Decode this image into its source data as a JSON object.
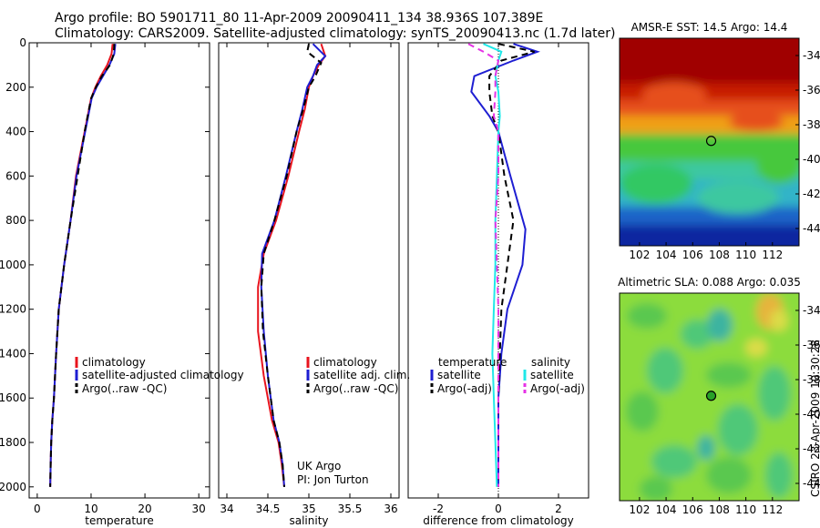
{
  "header": {
    "line1": "Argo profile: BO 5901711_80 11-Apr-2009 20090411_134 38.936S 107.389E",
    "line2": "Climatology: CARS2009. Satellite-adjusted climatology: synTS_20090413.nc (1.7d later)"
  },
  "credit": {
    "line1": "UK Argo",
    "line2": "PI: Jon Turton",
    "side": "CSIRO 23-Apr-2009 10:30:28"
  },
  "colors": {
    "climatology": "#e8141e",
    "satellite": "#1e1ed2",
    "argo": "#000000",
    "sal_satellite": "#20e8e8",
    "sal_argo": "#e632e6"
  },
  "chart_data": [
    {
      "type": "line",
      "xlabel": "temperature",
      "ylabel": "",
      "xlim": [
        -1.5,
        32
      ],
      "ylim": [
        0,
        2050
      ],
      "y_reversed": true,
      "xticks": [
        0,
        10,
        20,
        30
      ],
      "yticks": [
        0,
        200,
        400,
        600,
        800,
        1000,
        1200,
        1400,
        1600,
        1800,
        2000
      ],
      "legend": [
        "climatology",
        "satellite-adjusted climatology",
        "Argo(..raw -QC)"
      ],
      "series": [
        {
          "name": "climatology",
          "style": "solid",
          "color": "#e8141e",
          "x": [
            14.0,
            13.8,
            13.0,
            11.8,
            10.8,
            10.0,
            8.8,
            7.2,
            6.2,
            5.0,
            4.0,
            3.5,
            3.1,
            2.8,
            2.6,
            2.5,
            2.4
          ],
          "y": [
            5,
            50,
            100,
            150,
            200,
            250,
            400,
            600,
            800,
            1000,
            1200,
            1400,
            1600,
            1700,
            1800,
            1900,
            2000
          ]
        },
        {
          "name": "satellite-adjusted climatology",
          "style": "solid",
          "color": "#1e1ed2",
          "x": [
            14.5,
            14.3,
            13.4,
            12.2,
            11.0,
            10.1,
            8.9,
            7.3,
            6.2,
            5.0,
            4.0,
            3.5,
            3.1,
            2.8,
            2.6,
            2.5,
            2.4
          ],
          "y": [
            5,
            50,
            100,
            150,
            200,
            250,
            400,
            600,
            800,
            1000,
            1200,
            1400,
            1600,
            1700,
            1800,
            1900,
            2000
          ]
        },
        {
          "name": "Argo(..raw -QC)",
          "style": "dashed",
          "color": "#000000",
          "x": [
            14.3,
            14.2,
            13.5,
            12.0,
            10.9,
            10.0,
            8.8,
            7.5,
            6.2,
            5.0,
            4.0,
            3.5,
            3.1,
            2.8,
            2.6,
            2.5,
            2.4
          ],
          "y": [
            5,
            50,
            100,
            150,
            200,
            250,
            400,
            600,
            800,
            1000,
            1200,
            1400,
            1600,
            1700,
            1800,
            1900,
            2000
          ]
        }
      ]
    },
    {
      "type": "line",
      "xlabel": "salinity",
      "ylabel": "",
      "xlim": [
        33.9,
        36.1
      ],
      "ylim": [
        0,
        2050
      ],
      "y_reversed": true,
      "xticks": [
        34,
        34.5,
        35,
        35.5,
        36
      ],
      "xtick_labels": [
        "34",
        "34.5",
        "35",
        "35.5",
        "36"
      ],
      "legend": [
        "climatology",
        "satellite adj. clim.",
        "Argo(..raw -QC)"
      ],
      "series": [
        {
          "name": "climatology",
          "style": "solid",
          "color": "#e8141e",
          "x": [
            35.15,
            35.2,
            35.12,
            35.05,
            35.0,
            34.95,
            34.88,
            34.75,
            34.6,
            34.45,
            34.38,
            34.38,
            34.45,
            34.55,
            34.63,
            34.67,
            34.7
          ],
          "y": [
            5,
            60,
            100,
            150,
            200,
            300,
            400,
            600,
            800,
            950,
            1100,
            1300,
            1500,
            1700,
            1800,
            1900,
            2000
          ]
        },
        {
          "name": "satellite adj. clim.",
          "style": "solid",
          "color": "#1e1ed2",
          "x": [
            35.05,
            35.2,
            35.1,
            35.05,
            34.98,
            34.92,
            34.85,
            34.72,
            34.58,
            34.43,
            34.42,
            34.45,
            34.5,
            34.57,
            34.64,
            34.68,
            34.7
          ],
          "y": [
            5,
            60,
            100,
            150,
            200,
            300,
            400,
            600,
            800,
            950,
            1100,
            1300,
            1500,
            1700,
            1800,
            1900,
            2000
          ]
        },
        {
          "name": "Argo(..raw -QC)",
          "style": "dashed",
          "color": "#000000",
          "x": [
            35.0,
            34.98,
            35.15,
            35.08,
            35.0,
            34.93,
            34.85,
            34.73,
            34.58,
            34.45,
            34.42,
            34.44,
            34.5,
            34.57,
            34.64,
            34.68,
            34.7
          ],
          "y": [
            5,
            40,
            90,
            150,
            200,
            300,
            400,
            600,
            800,
            950,
            1100,
            1300,
            1500,
            1700,
            1800,
            1900,
            2000
          ]
        }
      ]
    },
    {
      "type": "line",
      "xlabel": "difference from climatology",
      "ylabel": "",
      "xlim": [
        -3,
        3
      ],
      "ylim": [
        0,
        2050
      ],
      "y_reversed": true,
      "xticks": [
        -2,
        0,
        2
      ],
      "legend_titles": [
        "temperature",
        "salinity"
      ],
      "legend": [
        "satellite",
        "Argo(-adj)",
        "satellite",
        "Argo(-adj)"
      ],
      "series": [
        {
          "name": "satellite",
          "group": "temperature",
          "style": "solid",
          "color": "#1e1ed2",
          "x": [
            0.5,
            1.3,
            0.5,
            -0.8,
            -0.9,
            -0.3,
            0.0,
            0.4,
            0.9,
            0.8,
            0.3,
            0.1,
            0.0,
            0.0,
            0.0
          ],
          "y": [
            5,
            40,
            80,
            150,
            220,
            330,
            400,
            600,
            840,
            1000,
            1200,
            1400,
            1600,
            1800,
            2000
          ]
        },
        {
          "name": "Argo(-adj)",
          "group": "temperature",
          "style": "dashed",
          "color": "#000000",
          "x": [
            0.0,
            1.2,
            0.1,
            -0.3,
            -0.3,
            -0.2,
            0.0,
            0.2,
            0.5,
            0.3,
            0.1,
            0.05,
            0.0,
            0.0,
            0.0
          ],
          "y": [
            5,
            40,
            80,
            150,
            220,
            330,
            400,
            600,
            800,
            1000,
            1200,
            1400,
            1600,
            1800,
            2000
          ]
        },
        {
          "name": "satellite",
          "group": "salinity",
          "style": "solid",
          "color": "#20e8e8",
          "x": [
            -0.5,
            0.1,
            0.0,
            -0.1,
            0.0,
            0.05,
            0.0,
            -0.05,
            -0.1,
            -0.1,
            -0.15,
            -0.2,
            -0.15,
            -0.1,
            -0.05
          ],
          "y": [
            5,
            40,
            80,
            150,
            220,
            330,
            400,
            600,
            800,
            1000,
            1200,
            1400,
            1600,
            1800,
            2000
          ]
        },
        {
          "name": "Argo(-adj)",
          "group": "salinity",
          "style": "dashed",
          "color": "#e632e6",
          "x": [
            -1.0,
            -0.5,
            0.0,
            -0.1,
            -0.1,
            -0.15,
            0.0,
            0.0,
            -0.1,
            -0.05,
            0.0,
            0.0,
            0.0,
            0.0,
            0.0
          ],
          "y": [
            5,
            40,
            80,
            150,
            220,
            330,
            400,
            600,
            800,
            1000,
            1200,
            1400,
            1600,
            1800,
            2000
          ]
        }
      ]
    },
    {
      "type": "heatmap",
      "title": "AMSR-E SST: 14.5 Argo: 14.4",
      "xlim": [
        100.5,
        114
      ],
      "ylim": [
        -45,
        -33
      ],
      "xticks": [
        102,
        104,
        106,
        108,
        110,
        112
      ],
      "yticks": [
        -34,
        -36,
        -38,
        -40,
        -42,
        -44
      ],
      "marker": {
        "x": 107.389,
        "y": -38.936
      },
      "bands": [
        "#a00000",
        "#c81e00",
        "#e6501e",
        "#f0a014",
        "#46c83c",
        "#32c864",
        "#3cc8a0",
        "#32b4c8",
        "#1e64c8",
        "#0a28a0"
      ]
    },
    {
      "type": "heatmap",
      "title": "Altimetric SLA: 0.088 Argo: 0.035",
      "xlim": [
        100.5,
        114
      ],
      "ylim": [
        -45,
        -33
      ],
      "xticks": [
        102,
        104,
        106,
        108,
        110,
        112
      ],
      "yticks": [
        -34,
        -36,
        -38,
        -40,
        -42,
        -44
      ],
      "marker": {
        "x": 107.389,
        "y": -38.936
      },
      "bands": [
        "#8cdc3c",
        "#5ac850",
        "#50c878",
        "#3cb4a0",
        "#dcdc46",
        "#e6b43c"
      ]
    }
  ]
}
